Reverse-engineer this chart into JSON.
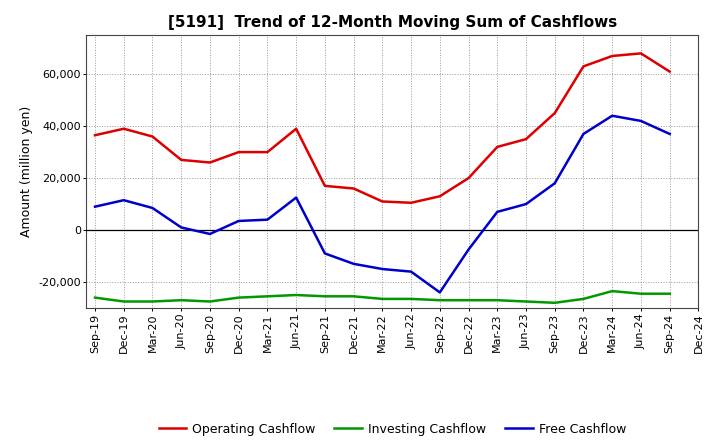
{
  "title": "[5191]  Trend of 12-Month Moving Sum of Cashflows",
  "ylabel": "Amount (million yen)",
  "x_labels": [
    "Sep-19",
    "Dec-19",
    "Mar-20",
    "Jun-20",
    "Sep-20",
    "Dec-20",
    "Mar-21",
    "Jun-21",
    "Sep-21",
    "Dec-21",
    "Mar-22",
    "Jun-22",
    "Sep-22",
    "Dec-22",
    "Mar-23",
    "Jun-23",
    "Sep-23",
    "Dec-23",
    "Mar-24",
    "Jun-24",
    "Sep-24",
    "Dec-24"
  ],
  "operating": [
    36500,
    39000,
    36000,
    27000,
    26000,
    30000,
    30000,
    39000,
    17000,
    16000,
    11000,
    10500,
    13000,
    20000,
    32000,
    35000,
    45000,
    63000,
    67000,
    68000,
    61000,
    null
  ],
  "investing": [
    -26000,
    -27500,
    -27500,
    -27000,
    -27500,
    -26000,
    -25500,
    -25000,
    -25500,
    -25500,
    -26500,
    -26500,
    -27000,
    -27000,
    -27000,
    -27500,
    -28000,
    -26500,
    -23500,
    -24500,
    -24500,
    null
  ],
  "free": [
    9000,
    11500,
    8500,
    1000,
    -1500,
    3500,
    4000,
    12500,
    -9000,
    -13000,
    -15000,
    -16000,
    -24000,
    -7500,
    7000,
    10000,
    18000,
    37000,
    44000,
    42000,
    37000,
    null
  ],
  "ylim": [
    -30000,
    75000
  ],
  "yticks": [
    -20000,
    0,
    20000,
    40000,
    60000
  ],
  "operating_color": "#dd0000",
  "investing_color": "#009900",
  "free_color": "#0000cc",
  "bg_color": "#ffffff",
  "plot_bg_color": "#ffffff",
  "grid_color": "#999999",
  "linewidth": 1.8,
  "title_fontsize": 11,
  "axis_fontsize": 8,
  "ylabel_fontsize": 9,
  "legend_fontsize": 9
}
